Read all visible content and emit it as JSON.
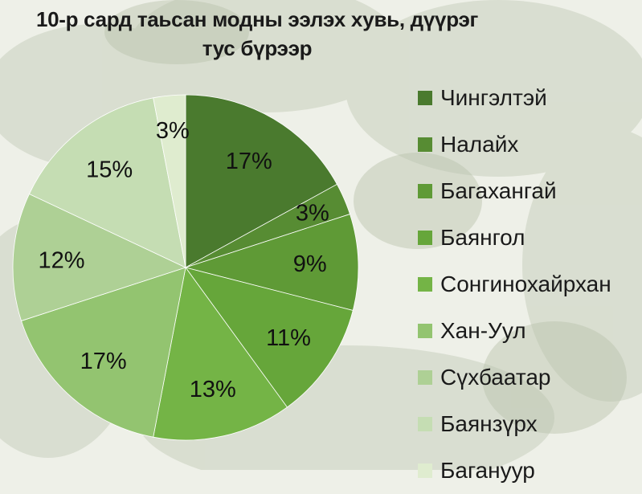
{
  "chart_data": {
    "type": "pie",
    "title_line1": "10-р сард таьсан модны ээлэх хувь, дүүрэг",
    "title_line2": "тус бүрээр",
    "legend_placement": "right",
    "slices": [
      {
        "label": "Чингэлтэй",
        "value": 17,
        "display": "17%",
        "color": "#4a7a2e"
      },
      {
        "label": "Налайх",
        "value": 3,
        "display": "3%",
        "color": "#578c33"
      },
      {
        "label": "Багахангай",
        "value": 9,
        "display": "9%",
        "color": "#5f9a36"
      },
      {
        "label": "Баянгол",
        "value": 11,
        "display": "11%",
        "color": "#66a63a"
      },
      {
        "label": "Сонгинохайрхан",
        "value": 13,
        "display": "13%",
        "color": "#74b446"
      },
      {
        "label": "Хан-Уул",
        "value": 17,
        "display": "17%",
        "color": "#93c470"
      },
      {
        "label": "Сүхбаатар",
        "value": 12,
        "display": "12%",
        "color": "#aed095"
      },
      {
        "label": "Баянзүрх",
        "value": 15,
        "display": "15%",
        "color": "#c5ddb3"
      },
      {
        "label": "Багануур",
        "value": 3,
        "display": "3%",
        "color": "#dfeccf"
      }
    ]
  }
}
